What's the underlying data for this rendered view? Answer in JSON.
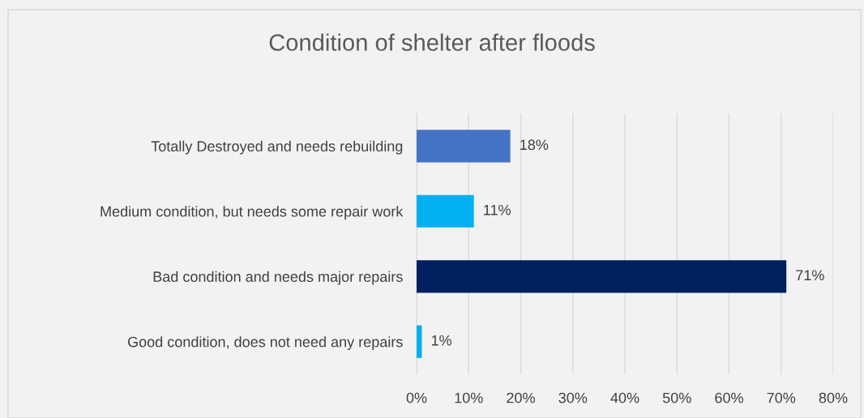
{
  "chart_data": {
    "type": "bar",
    "orientation": "horizontal",
    "title": "Condition of shelter after floods",
    "categories": [
      "Totally Destroyed and needs rebuilding",
      "Medium condition, but needs some repair work",
      "Bad condition and needs major repairs",
      "Good condition, does not need any repairs"
    ],
    "values": [
      18,
      11,
      71,
      1
    ],
    "colors": [
      "#4472c4",
      "#00b0f0",
      "#002060",
      "#00b0f0"
    ],
    "value_labels": [
      "18%",
      "11%",
      "71%",
      "1%"
    ],
    "xlim": [
      0,
      80
    ],
    "xticks": [
      {
        "value": 0,
        "label": "0%"
      },
      {
        "value": 10,
        "label": "10%"
      },
      {
        "value": 20,
        "label": "20%"
      },
      {
        "value": 30,
        "label": "30%"
      },
      {
        "value": 40,
        "label": "40%"
      },
      {
        "value": 50,
        "label": "50%"
      },
      {
        "value": 60,
        "label": "60%"
      },
      {
        "value": 70,
        "label": "70%"
      },
      {
        "value": 80,
        "label": "80%"
      }
    ],
    "grid": "x"
  }
}
